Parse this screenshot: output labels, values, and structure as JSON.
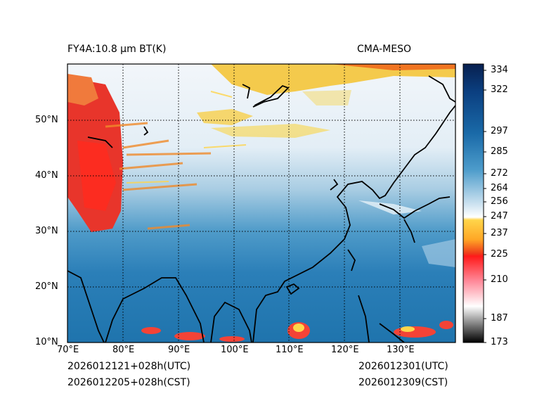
{
  "figure": {
    "title_left": "FY4A:10.8 µm BT(K)",
    "title_right": "CMA-MESO",
    "init_utc": "2026012121+028h(UTC)",
    "init_cst": "2026012205+028h(CST)",
    "valid_utc": "2026012301(UTC)",
    "valid_cst": "2026012309(CST)"
  },
  "map": {
    "lon_range": [
      70,
      140
    ],
    "lat_range": [
      10,
      60
    ],
    "lon_ticks": [
      "70°E",
      "80°E",
      "90°E",
      "100°E",
      "110°E",
      "120°E",
      "130°E"
    ],
    "lat_ticks": [
      "10°N",
      "20°N",
      "30°N",
      "40°N",
      "50°N"
    ]
  },
  "colorbar": {
    "labels": [
      "334",
      "322",
      "297",
      "285",
      "272",
      "264",
      "256",
      "247",
      "237",
      "225",
      "210",
      "187",
      "173"
    ],
    "colors": {
      "navy": "#08306b",
      "blue": "#2171b5",
      "lightblue": "#9ecae1",
      "white": "#f7fbff",
      "yellow": "#fdd835",
      "orange": "#f57c00",
      "red": "#e53935",
      "pink": "#f8bbd0",
      "black": "#111111"
    }
  }
}
